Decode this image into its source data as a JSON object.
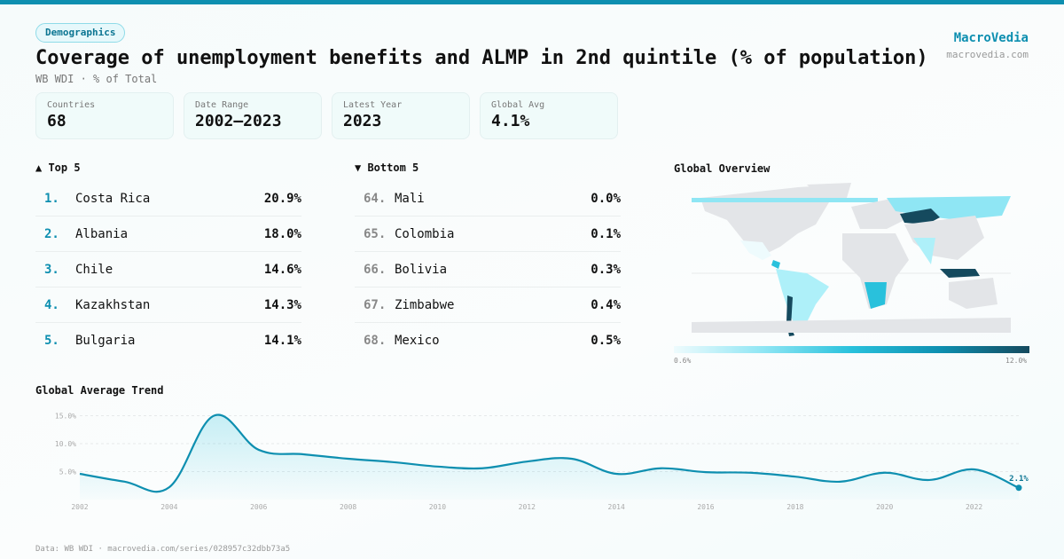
{
  "header": {
    "category": "Demographics",
    "title": "Coverage of unemployment benefits and ALMP in 2nd quintile (% of population)",
    "subtitle": "WB WDI · % of Total",
    "brand": "MacroVedia",
    "brand_url": "macrovedia.com"
  },
  "stats": [
    {
      "label": "Countries",
      "value": "68"
    },
    {
      "label": "Date Range",
      "value": "2002–2023"
    },
    {
      "label": "Latest Year",
      "value": "2023"
    },
    {
      "label": "Global Avg",
      "value": "4.1%"
    }
  ],
  "top5": {
    "title": "▲ Top 5",
    "items": [
      {
        "rank": "1.",
        "name": "Costa Rica",
        "value": "20.9%"
      },
      {
        "rank": "2.",
        "name": "Albania",
        "value": "18.0%"
      },
      {
        "rank": "3.",
        "name": "Chile",
        "value": "14.6%"
      },
      {
        "rank": "4.",
        "name": "Kazakhstan",
        "value": "14.3%"
      },
      {
        "rank": "5.",
        "name": "Bulgaria",
        "value": "14.1%"
      }
    ]
  },
  "bottom5": {
    "title": "▼ Bottom 5",
    "items": [
      {
        "rank": "64.",
        "name": "Mali",
        "value": "0.0%"
      },
      {
        "rank": "65.",
        "name": "Colombia",
        "value": "0.1%"
      },
      {
        "rank": "66.",
        "name": "Bolivia",
        "value": "0.3%"
      },
      {
        "rank": "67.",
        "name": "Zimbabwe",
        "value": "0.4%"
      },
      {
        "rank": "68.",
        "name": "Mexico",
        "value": "0.5%"
      }
    ]
  },
  "map": {
    "title": "Global Overview",
    "legend_min": "0.6%",
    "legend_max": "12.0%",
    "colors": {
      "no_data": "#e3e5e8",
      "low": "#eefbfd",
      "mid": "#8fe6f4",
      "high": "#154a5e"
    }
  },
  "chart_data": {
    "type": "area",
    "title": "Global Average Trend",
    "accent": "#0e8fb0",
    "x": [
      2002,
      2003,
      2004,
      2005,
      2006,
      2007,
      2008,
      2009,
      2010,
      2011,
      2012,
      2013,
      2014,
      2015,
      2016,
      2017,
      2018,
      2019,
      2020,
      2021,
      2022,
      2023
    ],
    "values": [
      4.6,
      3.2,
      2.2,
      15.0,
      8.9,
      8.1,
      7.3,
      6.7,
      5.9,
      5.6,
      6.8,
      7.3,
      4.6,
      5.6,
      4.9,
      4.8,
      4.1,
      3.2,
      4.8,
      3.5,
      5.4,
      2.1
    ],
    "y_ticks": [
      "5.0%",
      "10.0%",
      "15.0%"
    ],
    "y_tick_values": [
      5,
      10,
      15
    ],
    "x_ticks": [
      "2002",
      "2004",
      "2006",
      "2008",
      "2010",
      "2012",
      "2014",
      "2016",
      "2018",
      "2020",
      "2022"
    ],
    "last_label": "2.1%",
    "grid": true
  },
  "footer": "Data: WB WDI · macrovedia.com/series/028957c32dbb73a5"
}
